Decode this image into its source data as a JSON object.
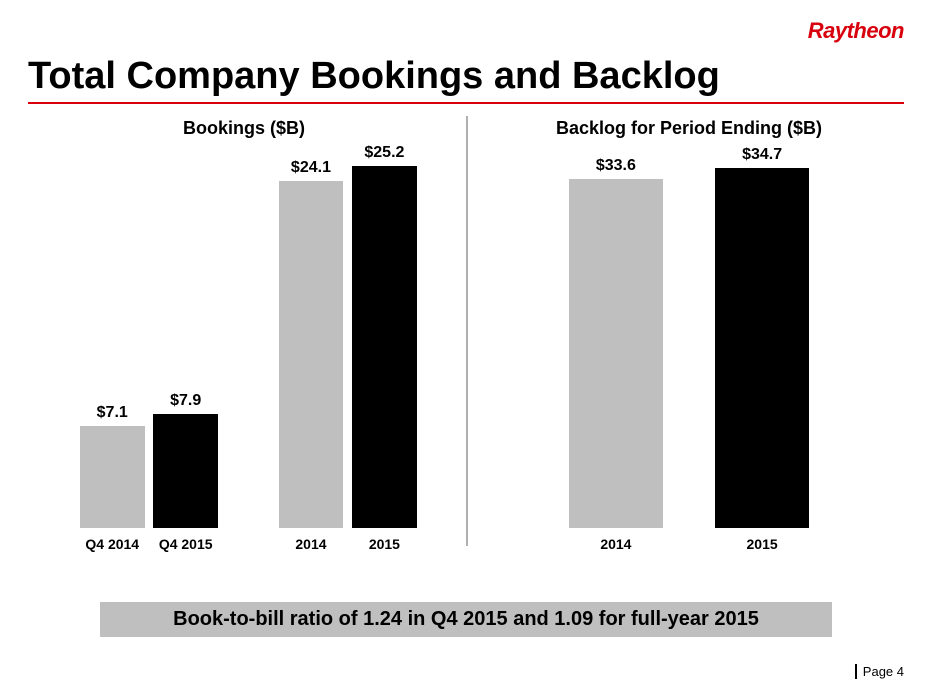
{
  "brand": {
    "name": "Raytheon",
    "color": "#d9000d"
  },
  "title": "Total Company Bookings and Backlog",
  "title_rule_color": "#d9000d",
  "divider_color": "#b0b0b0",
  "charts": {
    "bookings": {
      "title": "Bookings ($B)",
      "y_max": 26,
      "groups": [
        {
          "bars": [
            {
              "label": "Q4 2014",
              "value": 7.1,
              "display": "$7.1",
              "color": "#bfbfbf",
              "x_pct": 12,
              "width_pct": 15
            },
            {
              "label": "Q4 2015",
              "value": 7.9,
              "display": "$7.9",
              "color": "#000000",
              "x_pct": 29,
              "width_pct": 15
            }
          ]
        },
        {
          "bars": [
            {
              "label": "2014",
              "value": 24.1,
              "display": "$24.1",
              "color": "#bfbfbf",
              "x_pct": 58,
              "width_pct": 15
            },
            {
              "label": "2015",
              "value": 25.2,
              "display": "$25.2",
              "color": "#000000",
              "x_pct": 75,
              "width_pct": 15
            }
          ]
        }
      ]
    },
    "backlog": {
      "title": "Backlog for Period Ending ($B)",
      "y_max": 36,
      "groups": [
        {
          "bars": [
            {
              "label": "2014",
              "value": 33.6,
              "display": "$33.6",
              "color": "#bfbfbf",
              "x_pct": 22,
              "width_pct": 22
            },
            {
              "label": "2015",
              "value": 34.7,
              "display": "$34.7",
              "color": "#000000",
              "x_pct": 56,
              "width_pct": 22
            }
          ]
        }
      ]
    }
  },
  "footnote": {
    "text": "Book-to-bill ratio of 1.24 in Q4 2015 and 1.09 for full-year 2015",
    "bg": "#bfbfbf"
  },
  "page": "Page 4"
}
